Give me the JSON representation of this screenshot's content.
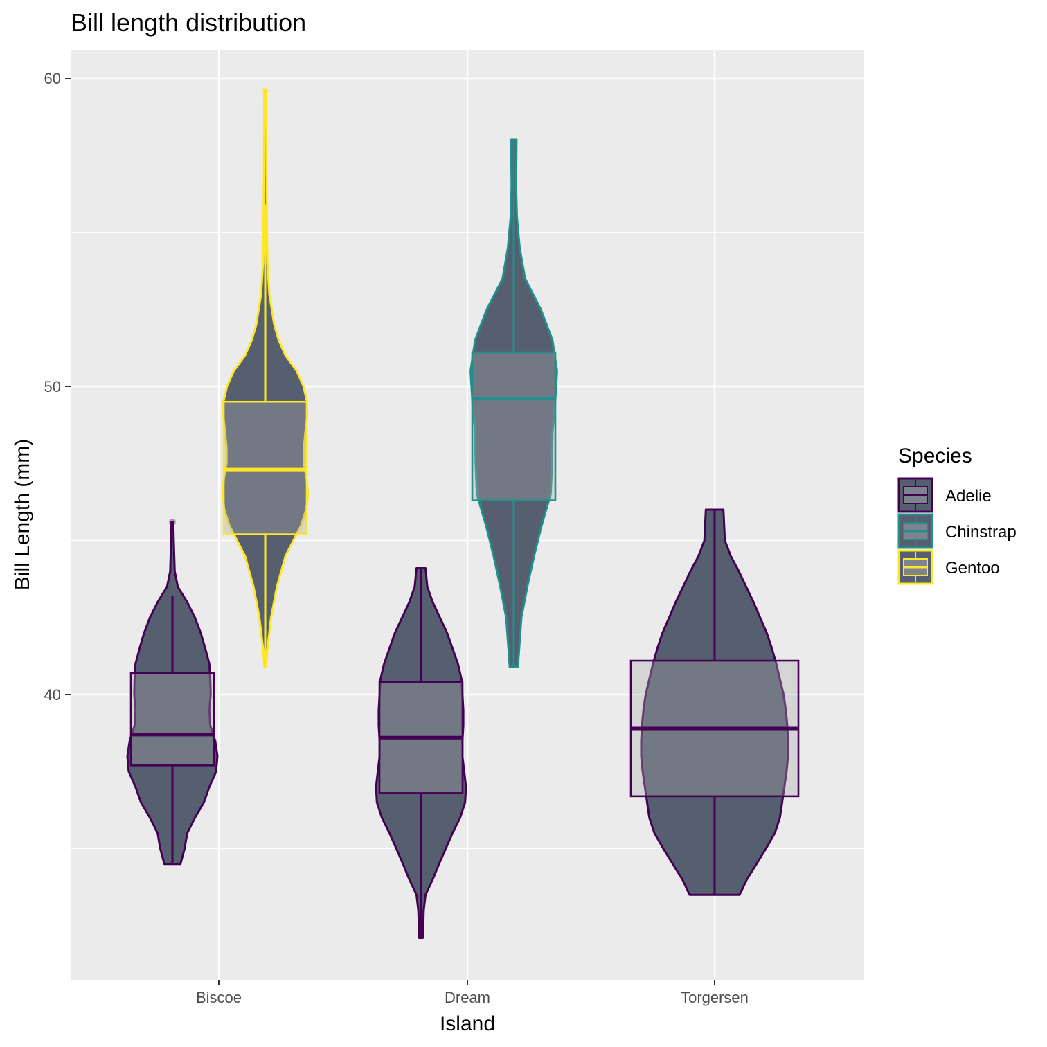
{
  "chart_data": {
    "type": "violin",
    "title": "Bill length distribution",
    "xlabel": "Island",
    "ylabel": "Bill Length (mm)",
    "categories": [
      "Biscoe",
      "Dream",
      "Torgersen"
    ],
    "y_ticks": [
      40,
      50,
      60
    ],
    "ylim": [
      31.0,
      61.0
    ],
    "grid": true,
    "legend": {
      "title": "Species",
      "position": "right",
      "entries": [
        "Adelie",
        "Chinstrap",
        "Gentoo"
      ]
    },
    "colors": {
      "Adelie": "#440154",
      "Chinstrap": "#21908C",
      "Gentoo": "#FDE725",
      "violin_fill": "#555f70",
      "box_fill": "#7f8390",
      "panel": "#ebebeb",
      "grid": "#ffffff"
    },
    "series": [
      {
        "species": "Adelie",
        "island": "Biscoe",
        "min": 34.5,
        "q1": 37.7,
        "median": 38.7,
        "q3": 40.7,
        "max": 45.6,
        "whisker_low": 34.5,
        "whisker_high": 43.2,
        "outliers": [
          45.6
        ],
        "density": [
          [
            34.5,
            0.18
          ],
          [
            35.0,
            0.27
          ],
          [
            35.5,
            0.33
          ],
          [
            36.0,
            0.5
          ],
          [
            36.5,
            0.7
          ],
          [
            37.0,
            0.82
          ],
          [
            37.5,
            0.97
          ],
          [
            38.0,
            1.0
          ],
          [
            38.5,
            0.95
          ],
          [
            39.0,
            0.84
          ],
          [
            39.5,
            0.82
          ],
          [
            40.0,
            0.85
          ],
          [
            40.5,
            0.84
          ],
          [
            41.0,
            0.82
          ],
          [
            41.5,
            0.73
          ],
          [
            42.0,
            0.63
          ],
          [
            42.5,
            0.5
          ],
          [
            43.0,
            0.33
          ],
          [
            43.5,
            0.12
          ],
          [
            44.0,
            0.05
          ],
          [
            45.0,
            0.03
          ],
          [
            45.6,
            0.02
          ]
        ]
      },
      {
        "species": "Gentoo",
        "island": "Biscoe",
        "min": 40.9,
        "q1": 45.2,
        "median": 47.3,
        "q3": 49.5,
        "max": 59.6,
        "whisker_low": 40.9,
        "whisker_high": 55.9,
        "outliers": [
          59.6
        ],
        "density": [
          [
            40.9,
            0.02
          ],
          [
            41.5,
            0.05
          ],
          [
            42.5,
            0.13
          ],
          [
            43.5,
            0.26
          ],
          [
            44.5,
            0.45
          ],
          [
            45.5,
            0.8
          ],
          [
            46.0,
            0.91
          ],
          [
            46.5,
            0.95
          ],
          [
            47.0,
            0.92
          ],
          [
            47.5,
            0.86
          ],
          [
            48.0,
            0.86
          ],
          [
            48.5,
            0.89
          ],
          [
            49.0,
            0.93
          ],
          [
            49.5,
            0.93
          ],
          [
            50.0,
            0.85
          ],
          [
            50.5,
            0.7
          ],
          [
            51.0,
            0.45
          ],
          [
            51.5,
            0.3
          ],
          [
            52.0,
            0.2
          ],
          [
            53.0,
            0.09
          ],
          [
            54.0,
            0.05
          ],
          [
            55.0,
            0.04
          ],
          [
            57.0,
            0.03
          ],
          [
            59.6,
            0.02
          ]
        ]
      },
      {
        "species": "Adelie",
        "island": "Dream",
        "min": 32.1,
        "q1": 36.8,
        "median": 38.6,
        "q3": 40.4,
        "max": 44.1,
        "whisker_low": 32.1,
        "whisker_high": 44.1,
        "outliers": [],
        "density": [
          [
            32.1,
            0.04
          ],
          [
            32.5,
            0.05
          ],
          [
            33.0,
            0.06
          ],
          [
            33.5,
            0.1
          ],
          [
            34.0,
            0.26
          ],
          [
            34.5,
            0.4
          ],
          [
            35.0,
            0.55
          ],
          [
            35.5,
            0.7
          ],
          [
            36.0,
            0.87
          ],
          [
            36.5,
            0.98
          ],
          [
            37.0,
            1.0
          ],
          [
            37.5,
            0.96
          ],
          [
            38.0,
            0.92
          ],
          [
            38.5,
            0.92
          ],
          [
            39.0,
            0.94
          ],
          [
            39.5,
            0.94
          ],
          [
            40.0,
            0.92
          ],
          [
            40.5,
            0.9
          ],
          [
            41.0,
            0.82
          ],
          [
            41.5,
            0.7
          ],
          [
            42.0,
            0.58
          ],
          [
            42.5,
            0.42
          ],
          [
            43.0,
            0.26
          ],
          [
            43.5,
            0.14
          ],
          [
            44.1,
            0.1
          ]
        ]
      },
      {
        "species": "Chinstrap",
        "island": "Dream",
        "min": 40.9,
        "q1": 46.3,
        "median": 49.6,
        "q3": 51.1,
        "max": 58.0,
        "whisker_low": 40.9,
        "whisker_high": 58.0,
        "outliers": [],
        "density": [
          [
            40.9,
            0.09
          ],
          [
            41.5,
            0.12
          ],
          [
            42.5,
            0.17
          ],
          [
            43.5,
            0.3
          ],
          [
            44.5,
            0.45
          ],
          [
            45.5,
            0.62
          ],
          [
            46.5,
            0.82
          ],
          [
            47.5,
            0.85
          ],
          [
            48.5,
            0.86
          ],
          [
            49.5,
            0.92
          ],
          [
            50.5,
            0.96
          ],
          [
            51.5,
            0.86
          ],
          [
            52.5,
            0.6
          ],
          [
            53.5,
            0.25
          ],
          [
            54.5,
            0.13
          ],
          [
            55.5,
            0.07
          ],
          [
            56.5,
            0.05
          ],
          [
            58.0,
            0.06
          ]
        ]
      },
      {
        "species": "Adelie",
        "island": "Torgersen",
        "min": 33.5,
        "q1": 36.7,
        "median": 38.9,
        "q3": 41.1,
        "max": 46.0,
        "whisker_low": 33.5,
        "whisker_high": 46.0,
        "outliers": [],
        "density": [
          [
            33.5,
            0.34
          ],
          [
            34.0,
            0.44
          ],
          [
            34.5,
            0.57
          ],
          [
            35.0,
            0.7
          ],
          [
            35.5,
            0.82
          ],
          [
            36.0,
            0.89
          ],
          [
            36.5,
            0.92
          ],
          [
            37.0,
            0.95
          ],
          [
            37.5,
            0.98
          ],
          [
            38.0,
            1.0
          ],
          [
            38.5,
            1.0
          ],
          [
            39.0,
            0.99
          ],
          [
            39.5,
            0.97
          ],
          [
            40.0,
            0.94
          ],
          [
            40.5,
            0.89
          ],
          [
            41.0,
            0.84
          ],
          [
            41.5,
            0.78
          ],
          [
            42.0,
            0.71
          ],
          [
            42.5,
            0.62
          ],
          [
            43.0,
            0.53
          ],
          [
            43.5,
            0.43
          ],
          [
            44.0,
            0.33
          ],
          [
            44.5,
            0.22
          ],
          [
            45.0,
            0.14
          ],
          [
            46.0,
            0.12
          ]
        ]
      }
    ]
  }
}
